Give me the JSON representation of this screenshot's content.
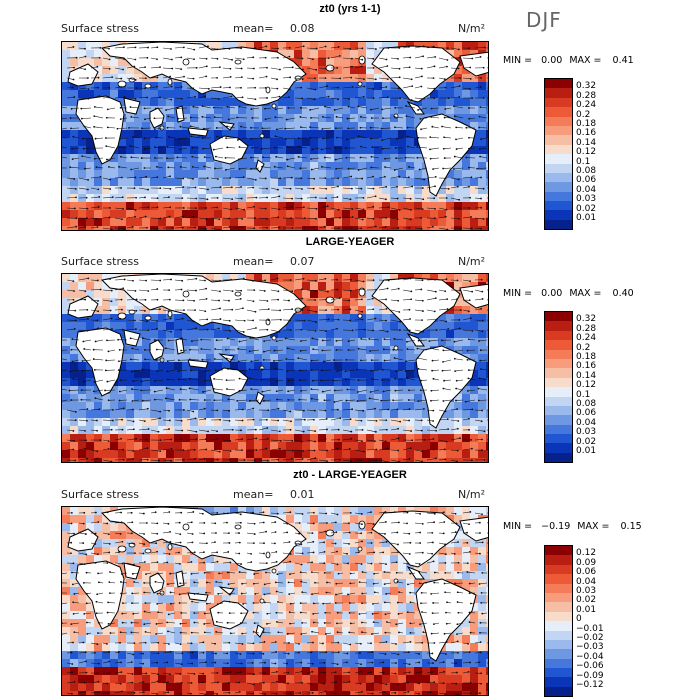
{
  "season": "DJF",
  "panels": [
    {
      "title": "zt0 (yrs 1-1)",
      "variable": "Surface stress",
      "mean_label": "mean=",
      "mean": "0.08",
      "units": "N/m²",
      "min_label": "MIN =",
      "min": "0.00",
      "max_label": "MAX =",
      "max": "0.41",
      "colorbar": {
        "labels": [
          "0.32",
          "0.28",
          "0.24",
          "0.2",
          "0.18",
          "0.16",
          "0.14",
          "0.12",
          "0.1",
          "0.08",
          "0.06",
          "0.04",
          "0.03",
          "0.02",
          "0.01"
        ],
        "colors": [
          "#8b0000",
          "#b81e12",
          "#d83a22",
          "#ec5a38",
          "#f47c58",
          "#f79d7d",
          "#f6bea4",
          "#f7dccb",
          "#e6eef9",
          "#c2d6f3",
          "#9ab9ec",
          "#6f98e3",
          "#4677dc",
          "#2156d3",
          "#0b35b8",
          "#06208c"
        ]
      }
    },
    {
      "title": "LARGE-YEAGER",
      "variable": "Surface stress",
      "mean_label": "mean=",
      "mean": "0.07",
      "units": "N/m²",
      "min_label": "MIN =",
      "min": "0.00",
      "max_label": "MAX =",
      "max": "0.40",
      "colorbar": {
        "labels": [
          "0.32",
          "0.28",
          "0.24",
          "0.2",
          "0.18",
          "0.16",
          "0.14",
          "0.12",
          "0.1",
          "0.08",
          "0.06",
          "0.04",
          "0.03",
          "0.02",
          "0.01"
        ],
        "colors": [
          "#8b0000",
          "#b81e12",
          "#d83a22",
          "#ec5a38",
          "#f47c58",
          "#f79d7d",
          "#f6bea4",
          "#f7dccb",
          "#e6eef9",
          "#c2d6f3",
          "#9ab9ec",
          "#6f98e3",
          "#4677dc",
          "#2156d3",
          "#0b35b8",
          "#06208c"
        ]
      }
    },
    {
      "title": "zt0 - LARGE-YEAGER",
      "variable": "Surface stress",
      "mean_label": "mean=",
      "mean": "0.01",
      "units": "N/m²",
      "min_label": "MIN =",
      "min": "−0.19",
      "max_label": "MAX =",
      "max": "0.15",
      "colorbar": {
        "labels": [
          "0.12",
          "0.09",
          "0.06",
          "0.04",
          "0.03",
          "0.02",
          "0.01",
          "0",
          "−0.01",
          "−0.02",
          "−0.03",
          "−0.04",
          "−0.06",
          "−0.09",
          "−0.12"
        ],
        "colors": [
          "#8b0000",
          "#b81e12",
          "#d83a22",
          "#ec5a38",
          "#f47c58",
          "#f79d7d",
          "#f6bea4",
          "#f7dccb",
          "#e6eef9",
          "#c2d6f3",
          "#9ab9ec",
          "#6f98e3",
          "#4677dc",
          "#2156d3",
          "#0b35b8",
          "#06208c"
        ]
      }
    }
  ]
}
